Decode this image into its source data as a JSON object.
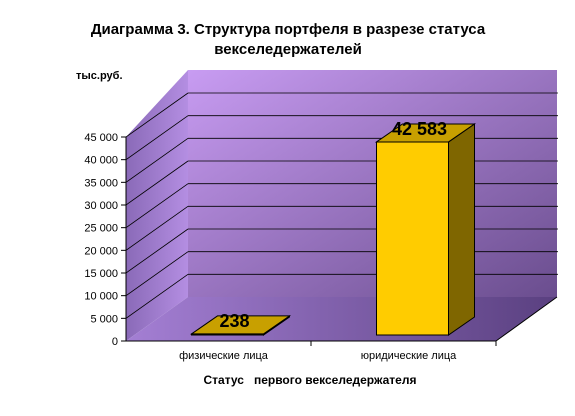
{
  "colors": {
    "page_bg": "#ffffff",
    "wall_light": "#c89cf2",
    "wall_dark": "#6a4d8e",
    "floor_light": "#a47fd4",
    "floor_dark": "#5a4080",
    "gridline": "#000000",
    "bar_front": "#ffcc00",
    "bar_side": "#7f6600",
    "bar_top": "#c8a000",
    "text": "#000000"
  },
  "chart_data": {
    "type": "bar",
    "title_line1": "Диаграмма 3. Структура портфеля в разрезе статуса",
    "title_line2": "векселедержателей",
    "ylabel": "тыс.руб.",
    "xlabel": "Статус   первого векселедержателя",
    "categories": [
      "физические лица",
      "юридические лица"
    ],
    "values": [
      238,
      42583
    ],
    "data_labels": [
      "238",
      "42 583"
    ],
    "ylim": [
      0,
      45000
    ],
    "yticks": [
      0,
      5000,
      10000,
      15000,
      20000,
      25000,
      30000,
      35000,
      40000,
      45000
    ],
    "ytick_labels": [
      "0",
      "5 000",
      "10 000",
      "15 000",
      "20 000",
      "25 000",
      "30 000",
      "35 000",
      "40 000",
      "45 000"
    ],
    "grid": true,
    "legend": "none",
    "style": "3d-column"
  }
}
